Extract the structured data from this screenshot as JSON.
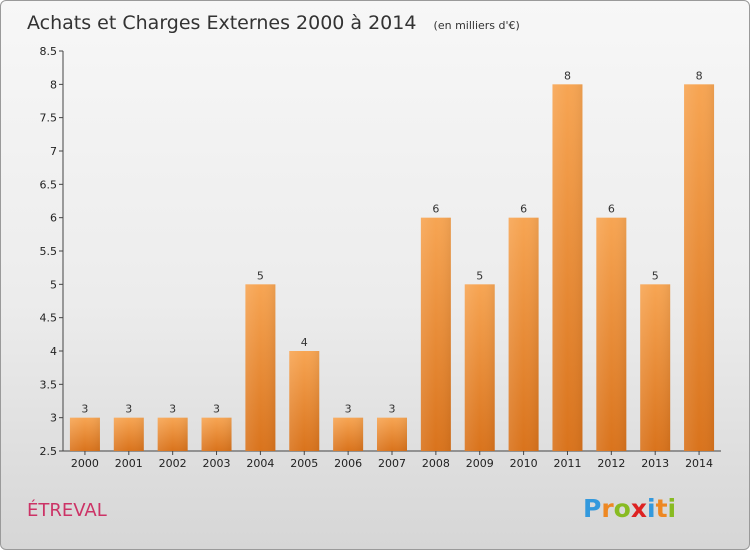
{
  "chart_data": {
    "type": "bar",
    "title": "Achats et Charges Externes 2000 à 2014",
    "subtitle": "(en milliers d'€)",
    "categories": [
      "2000",
      "2001",
      "2002",
      "2003",
      "2004",
      "2005",
      "2006",
      "2007",
      "2008",
      "2009",
      "2010",
      "2011",
      "2012",
      "2013",
      "2014"
    ],
    "values": [
      3,
      3,
      3,
      3,
      5,
      4,
      3,
      3,
      6,
      5,
      6,
      8,
      6,
      5,
      8
    ],
    "value_labels": [
      "3",
      "3",
      "3",
      "3",
      "5",
      "4",
      "3",
      "3",
      "6",
      "5",
      "6",
      "8",
      "6",
      "5",
      "8"
    ],
    "ylim": [
      2.5,
      8.5
    ],
    "yticks": [
      "2.5",
      "3",
      "3.5",
      "4",
      "4.5",
      "5",
      "5.5",
      "6",
      "6.5",
      "7",
      "7.5",
      "8",
      "8.5"
    ],
    "xlabel": "",
    "ylabel": "",
    "grid": false,
    "legend": "none",
    "bar_color": "#f0902e"
  },
  "commune": "ÉTREVAL",
  "brand": {
    "letters": [
      "P",
      "r",
      "o",
      "x",
      "i",
      "t",
      "i"
    ],
    "colors": [
      "#3399dd",
      "#ee8822",
      "#88bb22",
      "#dd2222",
      "#3399dd",
      "#ee8822",
      "#88bb22"
    ]
  }
}
